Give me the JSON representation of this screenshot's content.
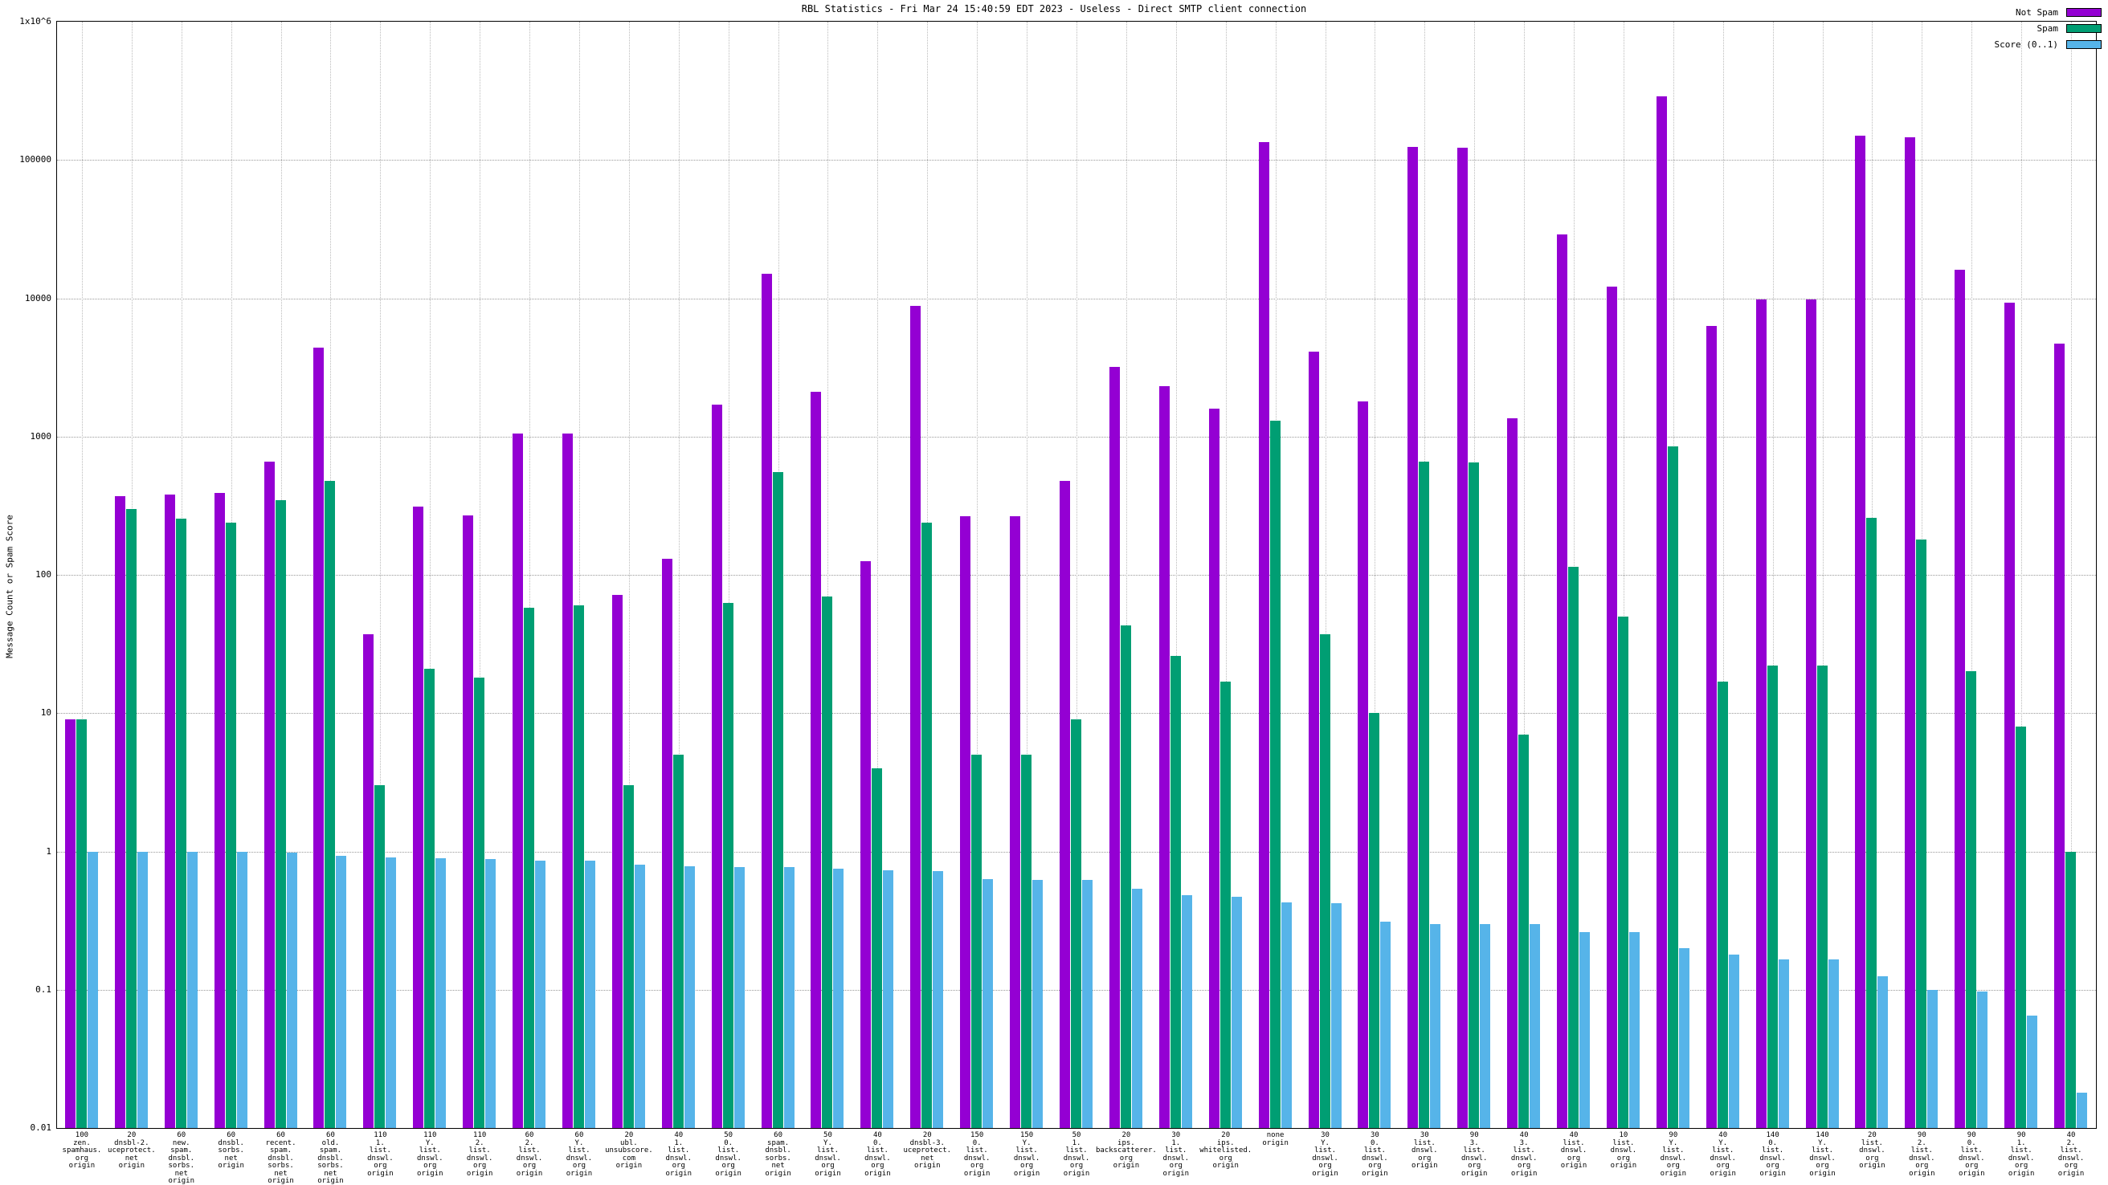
{
  "title": "RBL Statistics - Fri Mar 24 15:40:59 EDT 2023 - Useless - Direct SMTP client connection",
  "legend": {
    "items": [
      {
        "label": "Not Spam",
        "color": "#9400d3"
      },
      {
        "label": "Spam",
        "color": "#009e73"
      },
      {
        "label": "Score (0..1)",
        "color": "#56b4e9"
      }
    ]
  },
  "chart_data": {
    "type": "bar",
    "title": "RBL Statistics - Fri Mar 24 15:40:59 EDT 2023 - Useless - Direct SMTP client connection",
    "xlabel": "",
    "ylabel": "Message Count or Spam Score",
    "yscale": "log",
    "ylim": [
      0.01,
      1000000
    ],
    "yticks": [
      "1x10^6",
      "100000",
      "10000",
      "1000",
      "100",
      "10",
      "1",
      "0.1",
      "0.01"
    ],
    "grid": true,
    "legend_position": "top-right",
    "categories": [
      "100\nzen.\nspamhaus.\norg\norigin",
      "20\ndnsbl-2.\nuceprotect.\nnet\norigin",
      "60\nnew.\nspam.\ndnsbl.\nsorbs.\nnet\norigin",
      "60\ndnsbl.\nsorbs.\nnet\norigin",
      "60\nrecent.\nspam.\ndnsbl.\nsorbs.\nnet\norigin",
      "60\nold.\nspam.\ndnsbl.\nsorbs.\nnet\norigin",
      "110\n1.\nlist.\ndnswl.\norg\norigin",
      "110\nY.\nlist.\ndnswl.\norg\norigin",
      "110\n2.\nlist.\ndnswl.\norg\norigin",
      "60\n2.\nlist.\ndnswl.\norg\norigin",
      "60\nY.\nlist.\ndnswl.\norg\norigin",
      "20\nubl.\nunsubscore.\ncom\norigin",
      "40\n1.\nlist.\ndnswl.\norg\norigin",
      "50\n0.\nlist.\ndnswl.\norg\norigin",
      "60\nspam.\ndnsbl.\nsorbs.\nnet\norigin",
      "50\nY.\nlist.\ndnswl.\norg\norigin",
      "40\n0.\nlist.\ndnswl.\norg\norigin",
      "20\ndnsbl-3.\nuceprotect.\nnet\norigin",
      "150\n0.\nlist.\ndnswl.\norg\norigin",
      "150\nY.\nlist.\ndnswl.\norg\norigin",
      "50\n1.\nlist.\ndnswl.\norg\norigin",
      "20\nips.\nbackscatterer.\norg\norigin",
      "30\n1.\nlist.\ndnswl.\norg\norigin",
      "20\nips.\nwhitelisted.\norg\norigin",
      "none\norigin",
      "30\nY.\nlist.\ndnswl.\norg\norigin",
      "30\n0.\nlist.\ndnswl.\norg\norigin",
      "30\nlist.\ndnswl.\norg\norigin",
      "90\n3.\nlist.\ndnswl.\norg\norigin",
      "40\n3.\nlist.\ndnswl.\norg\norigin",
      "40\nlist.\ndnswl.\norg\norigin",
      "10\nlist.\ndnswl.\norg\norigin",
      "90\nY.\nlist.\ndnswl.\norg\norigin",
      "40\nY.\nlist.\ndnswl.\norg\norigin",
      "140\n0.\nlist.\ndnswl.\norg\norigin",
      "140\nY.\nlist.\ndnswl.\norg\norigin",
      "20\nlist.\ndnswl.\norg\norigin",
      "90\n2.\nlist.\ndnswl.\norg\norigin",
      "90\n0.\nlist.\ndnswl.\norg\norigin",
      "90\n1.\nlist.\ndnswl.\norg\norigin",
      "40\n2.\nlist.\ndnswl.\norg\norigin"
    ],
    "series": [
      {
        "name": "Not Spam",
        "color": "#9400d3",
        "values": [
          9,
          372,
          380,
          390,
          660,
          4400,
          37,
          310,
          270,
          1050,
          1050,
          72,
          130,
          1700,
          15000,
          2100,
          125,
          8800,
          265,
          265,
          480,
          3200,
          2300,
          1600,
          135000,
          4100,
          1800,
          125000,
          122000,
          1350,
          29000,
          12200,
          290000,
          6300,
          9800,
          9800,
          150000,
          145000,
          16000,
          9300,
          4700
        ]
      },
      {
        "name": "Spam",
        "color": "#009e73",
        "values": [
          9,
          300,
          255,
          240,
          345,
          480,
          3,
          21,
          18,
          58,
          60,
          3,
          5,
          63,
          550,
          70,
          4,
          240,
          5,
          5,
          9,
          43,
          26,
          17,
          1300,
          37,
          10,
          660,
          650,
          7,
          115,
          50,
          850,
          17,
          22,
          22,
          260,
          180,
          20,
          8,
          1.0
        ]
      },
      {
        "name": "Score (0..1)",
        "color": "#56b4e9",
        "values": [
          1.0,
          1.0,
          0.99,
          0.99,
          0.98,
          0.93,
          0.9,
          0.89,
          0.88,
          0.86,
          0.86,
          0.8,
          0.78,
          0.77,
          0.77,
          0.75,
          0.73,
          0.72,
          0.63,
          0.62,
          0.62,
          0.54,
          0.48,
          0.47,
          0.43,
          0.42,
          0.31,
          0.3,
          0.3,
          0.3,
          0.26,
          0.26,
          0.2,
          0.18,
          0.165,
          0.165,
          0.125,
          0.1,
          0.097,
          0.065,
          0.018
        ]
      }
    ]
  }
}
